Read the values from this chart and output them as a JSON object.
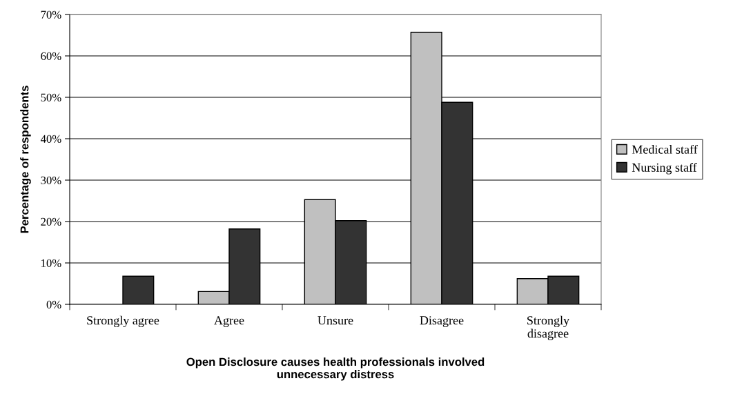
{
  "chart_data": {
    "type": "bar",
    "xlabel": "Open Disclosure causes health professionals involved\nunnecessary distress",
    "ylabel": "Percentage of respondents",
    "categories": [
      "Strongly agree",
      "Agree",
      "Unsure",
      "Disagree",
      "Strongly\ndisagree"
    ],
    "series": [
      {
        "name": "Medical staff",
        "color": "#c0c0c0",
        "values": [
          0,
          3.1,
          25.3,
          65.7,
          6.2
        ]
      },
      {
        "name": "Nursing staff",
        "color": "#333333",
        "values": [
          6.8,
          18.2,
          20.2,
          48.8,
          6.8
        ]
      }
    ],
    "ylim": [
      0,
      70
    ],
    "yticks": [
      {
        "value": 0,
        "label": "0%"
      },
      {
        "value": 10,
        "label": "10%"
      },
      {
        "value": 20,
        "label": "20%"
      },
      {
        "value": 30,
        "label": "30%"
      },
      {
        "value": 40,
        "label": "40%"
      },
      {
        "value": 50,
        "label": "50%"
      },
      {
        "value": 60,
        "label": "60%"
      },
      {
        "value": 70,
        "label": "70%"
      }
    ],
    "grid": "y",
    "legend": "right"
  }
}
